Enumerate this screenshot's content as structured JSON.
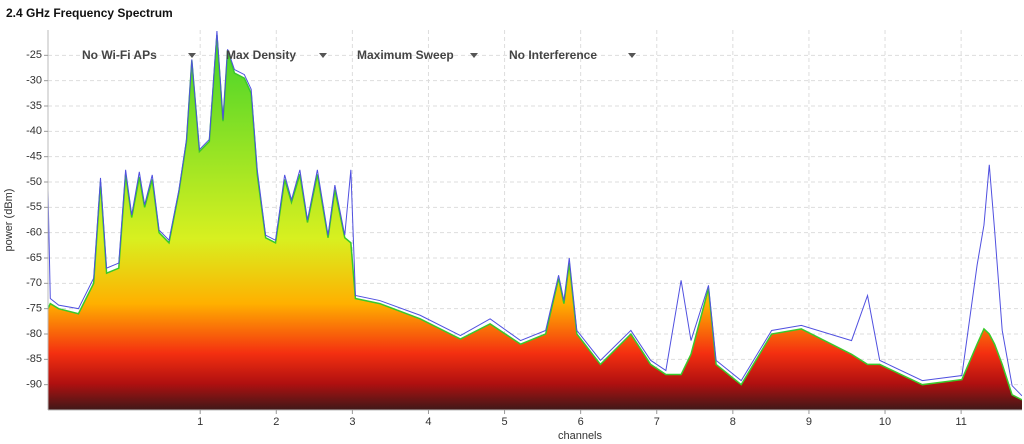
{
  "chart_data": {
    "type": "line",
    "title": "2.4 GHz Frequency Spectrum",
    "controls": [
      "No Wi-Fi APs",
      "Max Density",
      "Maximum Sweep",
      "No Interference"
    ],
    "x_label": "channels",
    "y_label": "power (dBm)",
    "x": [
      -1.0,
      -0.97,
      -0.86,
      -0.6,
      -0.4,
      -0.31,
      -0.23,
      -0.07,
      0.02,
      0.1,
      0.2,
      0.27,
      0.37,
      0.46,
      0.59,
      0.72,
      0.82,
      0.89,
      0.99,
      1.12,
      1.22,
      1.3,
      1.36,
      1.45,
      1.58,
      1.67,
      1.75,
      1.86,
      1.99,
      2.11,
      2.2,
      2.31,
      2.41,
      2.54,
      2.68,
      2.77,
      2.9,
      2.98,
      3.04,
      3.36,
      3.89,
      4.42,
      4.81,
      5.21,
      5.54,
      5.71,
      5.78,
      5.85,
      5.95,
      6.26,
      6.66,
      6.92,
      7.12,
      7.32,
      7.45,
      7.68,
      7.78,
      8.11,
      8.51,
      8.9,
      9.56,
      9.77,
      9.93,
      10.49,
      11.01,
      11.21,
      11.3,
      11.37,
      11.44,
      11.54,
      11.67,
      11.8
    ],
    "series": [
      {
        "type": "line",
        "color": "#5050e0",
        "values": [
          -51.6,
          -73,
          -74.3,
          -75,
          -69,
          -49.2,
          -67,
          -66,
          -47.6,
          -56.5,
          -48,
          -54.5,
          -48.6,
          -59.5,
          -61.5,
          -51.6,
          -41.6,
          -25.8,
          -43.6,
          -41.6,
          -20.2,
          -37.7,
          -23.8,
          -27.8,
          -28.8,
          -31.7,
          -47.6,
          -60.5,
          -61.5,
          -48.6,
          -53.5,
          -47.6,
          -57.5,
          -47.6,
          -60.5,
          -50.6,
          -60.5,
          -47.6,
          -72.4,
          -73.4,
          -76.3,
          -80.3,
          -77,
          -81.3,
          -79.3,
          -68.4,
          -73.4,
          -65,
          -79.3,
          -85.2,
          -79.3,
          -85.2,
          -87.2,
          -69.4,
          -81.3,
          -70.4,
          -85.2,
          -89.2,
          -79.3,
          -78.3,
          -81.3,
          -72.4,
          -85.2,
          -89.2,
          -88.2,
          -66.4,
          -58.5,
          -46.6,
          -59.5,
          -79.3,
          -90.2,
          -92.2
        ]
      },
      {
        "type": "area",
        "color": "#39c92a",
        "values": [
          -75,
          -74,
          -75,
          -76,
          -70,
          -50,
          -68,
          -67,
          -48.5,
          -57,
          -49,
          -55,
          -49.5,
          -60,
          -62,
          -52,
          -42,
          -26,
          -44,
          -42,
          -21,
          -38,
          -24,
          -28.5,
          -29.5,
          -32.5,
          -48.5,
          -61,
          -62,
          -49.5,
          -54,
          -48.5,
          -58,
          -48.5,
          -61,
          -51.5,
          -61,
          -62,
          -73,
          -74,
          -77,
          -81,
          -78,
          -82,
          -80,
          -69,
          -74,
          -66,
          -80,
          -86,
          -80,
          -86,
          -88,
          -88,
          -84,
          -71,
          -86,
          -90,
          -80,
          -79,
          -84,
          -86,
          -86,
          -90,
          -89,
          -82,
          -79,
          -80,
          -82,
          -86,
          -92,
          -93
        ]
      }
    ],
    "xlim": [
      -1,
      11.8
    ],
    "ylim": [
      -95,
      -20
    ],
    "xticks": [
      1,
      2,
      3,
      4,
      5,
      6,
      7,
      8,
      9,
      10,
      11
    ],
    "yticks": [
      -25,
      -30,
      -35,
      -40,
      -45,
      -50,
      -55,
      -60,
      -65,
      -70,
      -75,
      -80,
      -85,
      -90
    ],
    "grid": true
  }
}
